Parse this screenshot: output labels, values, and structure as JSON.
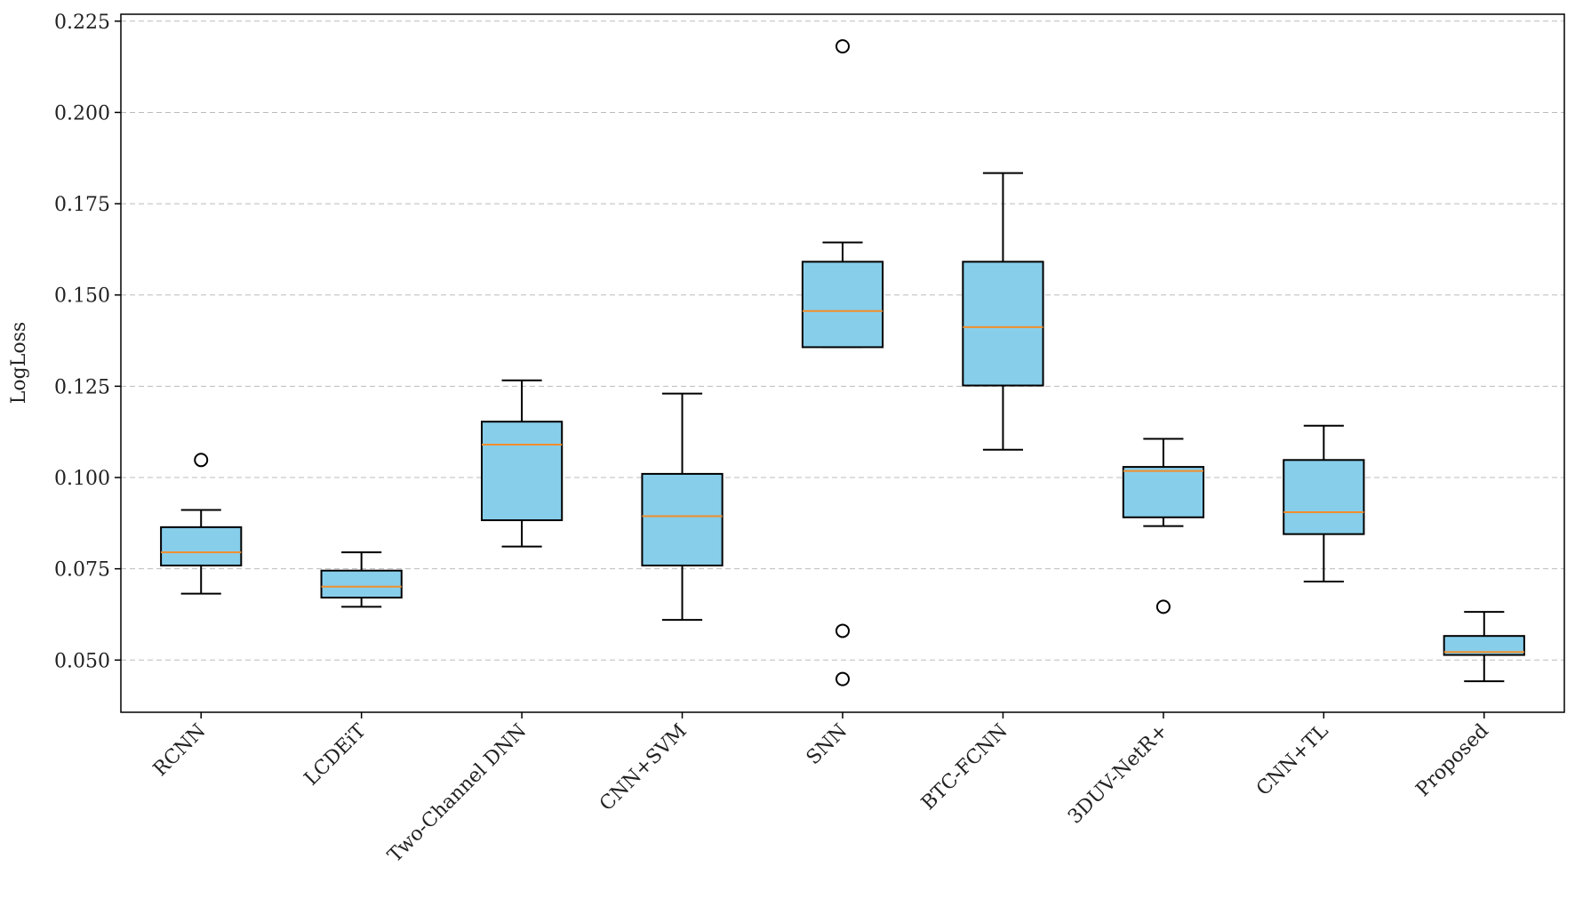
{
  "chart_data": {
    "type": "box",
    "ylabel": "LogLoss",
    "categories": [
      "RCNN",
      "LCDEiT",
      "Two-Channel DNN",
      "CNN+SVM",
      "SNN",
      "BTC-FCNN",
      "3DUV-NetR+",
      "CNN+TL",
      "Proposed"
    ],
    "boxes": [
      {
        "whislo": 0.0682,
        "q1": 0.0759,
        "med": 0.0795,
        "q3": 0.0864,
        "whishi": 0.0911,
        "fliers": [
          0.1048
        ]
      },
      {
        "whislo": 0.0646,
        "q1": 0.0671,
        "med": 0.0701,
        "q3": 0.0745,
        "whishi": 0.0795,
        "fliers": []
      },
      {
        "whislo": 0.0811,
        "q1": 0.0883,
        "med": 0.109,
        "q3": 0.1153,
        "whishi": 0.1266,
        "fliers": []
      },
      {
        "whislo": 0.061,
        "q1": 0.0759,
        "med": 0.0894,
        "q3": 0.101,
        "whishi": 0.123,
        "fliers": []
      },
      {
        "whislo": 0.1357,
        "q1": 0.1357,
        "med": 0.1456,
        "q3": 0.1591,
        "whishi": 0.1644,
        "fliers": [
          0.2181,
          0.058,
          0.0448
        ]
      },
      {
        "whislo": 0.1076,
        "q1": 0.1252,
        "med": 0.1412,
        "q3": 0.1591,
        "whishi": 0.1834,
        "fliers": []
      },
      {
        "whislo": 0.0867,
        "q1": 0.0891,
        "med": 0.1018,
        "q3": 0.1029,
        "whishi": 0.1106,
        "fliers": [
          0.0646
        ]
      },
      {
        "whislo": 0.0715,
        "q1": 0.0845,
        "med": 0.0905,
        "q3": 0.1048,
        "whishi": 0.1142,
        "fliers": []
      },
      {
        "whislo": 0.0442,
        "q1": 0.0514,
        "med": 0.0522,
        "q3": 0.0566,
        "whishi": 0.0632,
        "fliers": []
      }
    ],
    "color": "#87ceeb",
    "median_color": "#f28e2b",
    "ylim": [
      0.0357,
      0.2269
    ],
    "yticks": [
      {
        "value": 0.05,
        "label": "0.050"
      },
      {
        "value": 0.075,
        "label": "0.075"
      },
      {
        "value": 0.1,
        "label": "0.100"
      },
      {
        "value": 0.125,
        "label": "0.125"
      },
      {
        "value": 0.15,
        "label": "0.150"
      },
      {
        "value": 0.175,
        "label": "0.175"
      },
      {
        "value": 0.2,
        "label": "0.200"
      },
      {
        "value": 0.225,
        "label": "0.225"
      }
    ],
    "grid": true
  }
}
